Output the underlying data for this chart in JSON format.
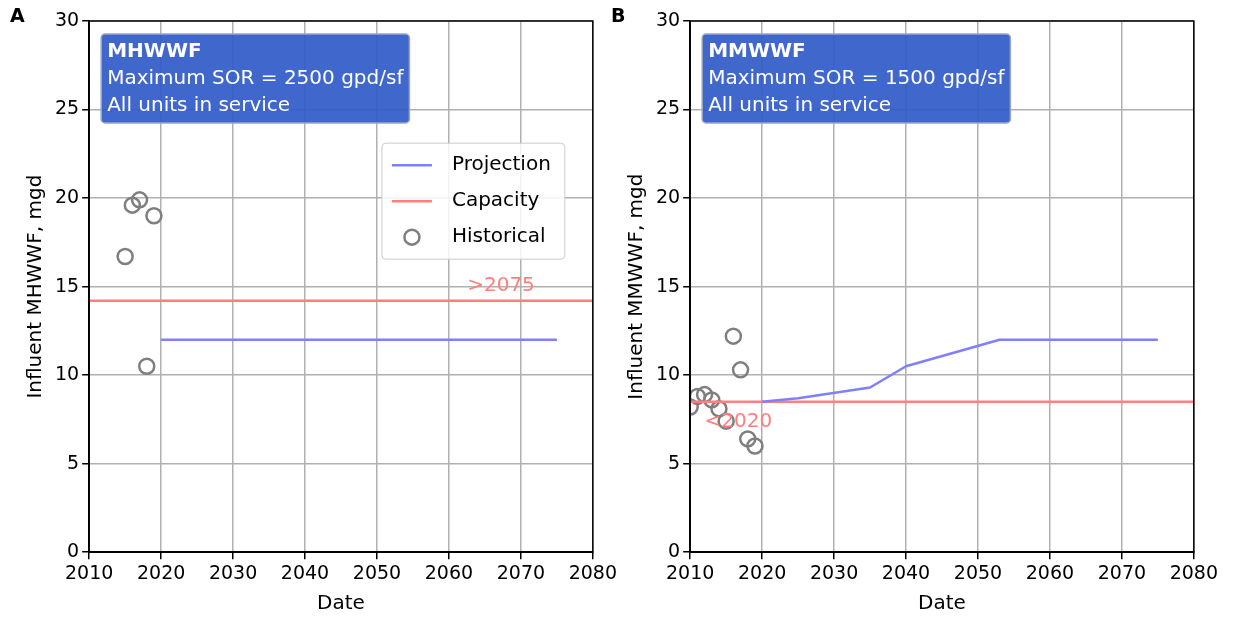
{
  "chart_data": [
    {
      "type": "line",
      "title": "A",
      "xlabel": "Date",
      "ylabel": "Influent MHWWF, mgd",
      "xlim": [
        2010,
        2080
      ],
      "xticks": [
        2010,
        2020,
        2030,
        2040,
        2050,
        2060,
        2070,
        2080
      ],
      "ylim": [
        0,
        30
      ],
      "yticks": [
        0,
        5,
        10,
        15,
        20,
        25,
        30
      ],
      "grid": true,
      "legend": "top right",
      "annotations": [
        "MHWWF",
        "Maximum SOR = 2500 gpd/sf",
        "All units in service",
        {
          "text": ">2075",
          "x": 2075,
          "y": 14.2
        }
      ],
      "series": [
        {
          "name": "Projection",
          "color": "#7f7fff",
          "marker": "none",
          "x": [
            2020,
            2075
          ],
          "values": [
            12,
            12
          ]
        },
        {
          "name": "Capacity",
          "color": "#ff7f7f",
          "marker": "none",
          "x": [
            2010,
            2080
          ],
          "values": [
            14.2,
            14.2
          ]
        },
        {
          "name": "Historical",
          "type": "scatter",
          "color": "#7f7f7f",
          "marker": "circle",
          "x": [
            2015,
            2016,
            2017,
            2018,
            2019
          ],
          "values": [
            16.7,
            19.6,
            19.9,
            10.5,
            19.0
          ]
        }
      ]
    },
    {
      "type": "line",
      "title": "B",
      "xlabel": "Date",
      "ylabel": "Influent MMWWF, mgd",
      "xlim": [
        2010,
        2080
      ],
      "xticks": [
        2010,
        2020,
        2030,
        2040,
        2050,
        2060,
        2070,
        2080
      ],
      "ylim": [
        0,
        30
      ],
      "yticks": [
        0,
        5,
        10,
        15,
        20,
        25,
        30
      ],
      "grid": true,
      "annotations": [
        "MMWWF",
        "Maximum SOR = 1500 gpd/sf",
        "All units in service",
        {
          "text": "<2020",
          "x": 2020,
          "y": 8.5
        }
      ],
      "series": [
        {
          "color": "#7f7fff",
          "marker": "none",
          "x": [
            2020,
            2025,
            2035,
            2040,
            2053,
            2075
          ],
          "values": [
            8.5,
            8.7,
            9.3,
            10.5,
            12.0,
            12.0
          ]
        },
        {
          "color": "#ff7f7f",
          "marker": "none",
          "x": [
            2010,
            2080
          ],
          "values": [
            8.5,
            8.5
          ]
        },
        {
          "type": "scatter",
          "color": "#7f7f7f",
          "marker": "circle",
          "x": [
            2010,
            2011,
            2012,
            2013,
            2014,
            2015,
            2016,
            2017,
            2018,
            2019
          ],
          "values": [
            8.2,
            8.8,
            8.9,
            8.6,
            8.1,
            7.4,
            12.2,
            10.3,
            6.4,
            6.0
          ]
        }
      ]
    }
  ]
}
